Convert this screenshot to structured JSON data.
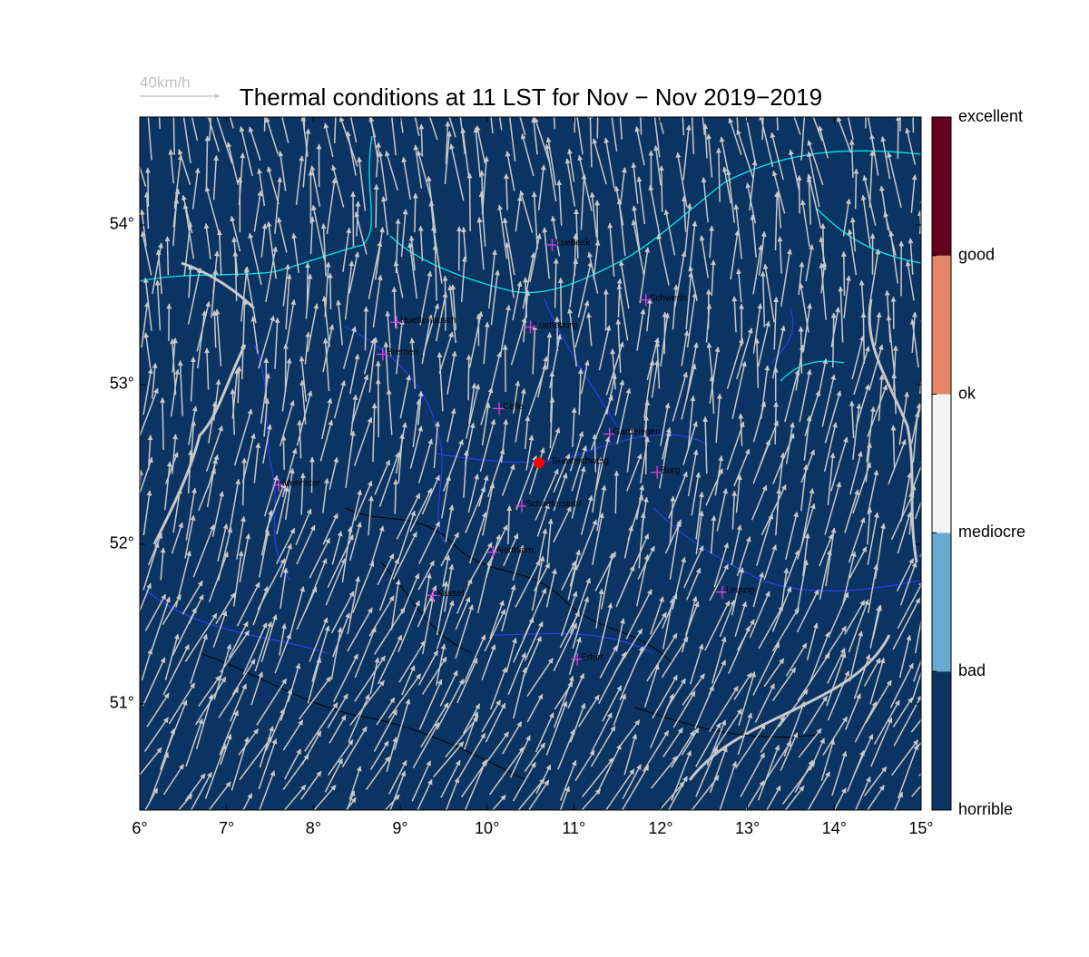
{
  "title": "Thermal conditions at 11 LST for Nov − Nov  2019−2019",
  "scale_label": "40km/h",
  "map": {
    "xlim": [
      6,
      15
    ],
    "ylim": [
      50.335,
      54.676
    ],
    "xticks": [
      {
        "value": 6,
        "label": "6°"
      },
      {
        "value": 7,
        "label": "7°"
      },
      {
        "value": 8,
        "label": "8°"
      },
      {
        "value": 9,
        "label": "9°"
      },
      {
        "value": 10,
        "label": "10°"
      },
      {
        "value": 11,
        "label": "11°"
      },
      {
        "value": 12,
        "label": "12°"
      },
      {
        "value": 13,
        "label": "13°"
      },
      {
        "value": 14,
        "label": "14°"
      },
      {
        "value": 15,
        "label": "15°"
      }
    ],
    "yticks": [
      {
        "value": 51,
        "label": "51°"
      },
      {
        "value": 52,
        "label": "52°"
      },
      {
        "value": 53,
        "label": "53°"
      },
      {
        "value": 54,
        "label": "54°"
      }
    ],
    "background": "#0b3463",
    "cities": [
      {
        "name": "Luebeck",
        "lon": 10.75,
        "lat": 53.875
      },
      {
        "name": "Huettenbusch",
        "lon": 8.96,
        "lat": 53.39
      },
      {
        "name": "Bremen",
        "lon": 8.8,
        "lat": 53.19
      },
      {
        "name": "Luetteburg",
        "lon": 10.5,
        "lat": 53.36
      },
      {
        "name": "Schwerin",
        "lon": 11.83,
        "lat": 53.53
      },
      {
        "name": "Celle",
        "lon": 10.14,
        "lat": 52.85
      },
      {
        "name": "Gardelegen",
        "lon": 11.41,
        "lat": 52.69
      },
      {
        "name": "Burg",
        "lon": 11.96,
        "lat": 52.45
      },
      {
        "name": "Muenster",
        "lon": 7.6,
        "lat": 52.37
      },
      {
        "name": "Schaeferstuhl",
        "lon": 10.4,
        "lat": 52.24
      },
      {
        "name": "Northeim",
        "lon": 10.07,
        "lat": 51.95
      },
      {
        "name": "Kassel",
        "lon": 9.38,
        "lat": 51.68
      },
      {
        "name": "Leipzig",
        "lon": 12.71,
        "lat": 51.7
      },
      {
        "name": "Erfurt",
        "lon": 11.04,
        "lat": 51.28
      }
    ],
    "site": {
      "name": "Braunschweig",
      "lon": 10.6,
      "lat": 52.51
    }
  },
  "colorbar": {
    "labels": [
      "horrible",
      "bad",
      "mediocre",
      "ok",
      "good",
      "excellent"
    ],
    "colors": [
      "#0b3463",
      "#67a9cf",
      "#f4f4f4",
      "#e5866a",
      "#67001f"
    ]
  }
}
